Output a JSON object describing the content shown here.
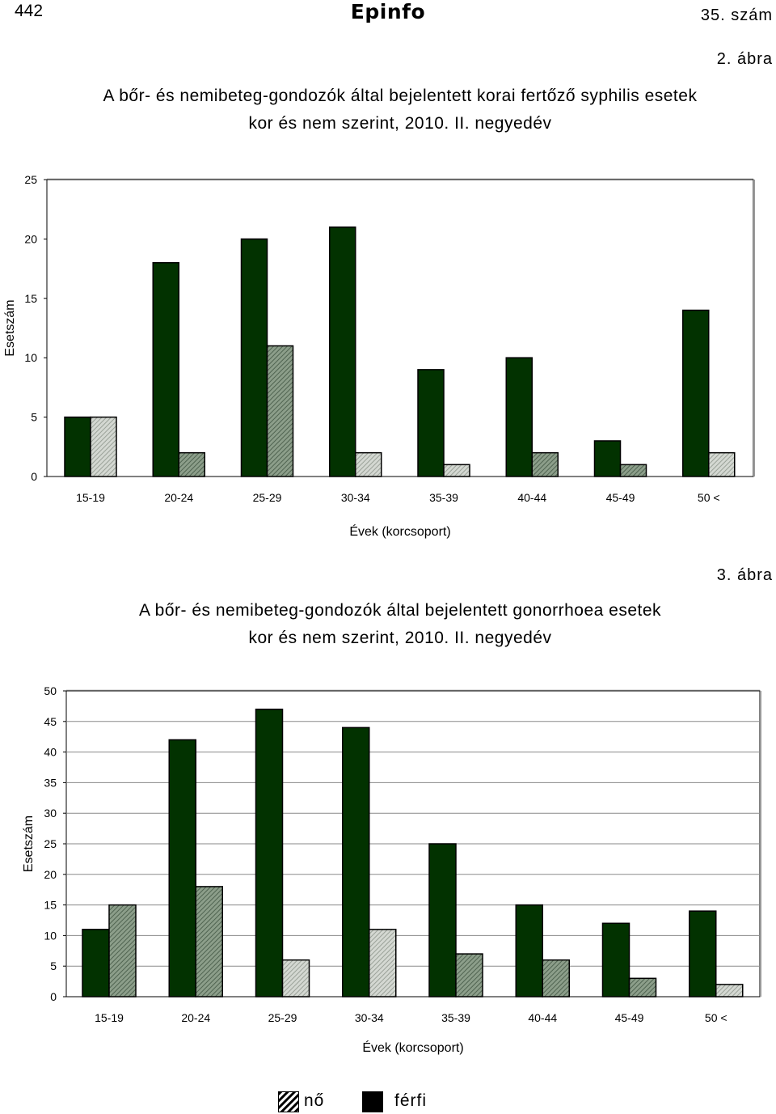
{
  "header": {
    "page_number": "442",
    "logo": "Epinfo",
    "issue": "35. szám"
  },
  "figure2": {
    "label": "2. ábra",
    "title_line1": "A bőr- és nemibeteg-gondozók által bejelentett korai fertőző syphilis esetek",
    "title_line2": "kor és nem szerint, 2010. II. negyedév"
  },
  "figure3": {
    "label": "3. ábra",
    "title_line1": "A bőr- és nemibeteg-gondozók által bejelentett gonorrhoea esetek",
    "title_line2": "kor és nem szerint, 2010. II. negyedév"
  },
  "legend": {
    "female": "nő",
    "male": "férfi"
  },
  "colors": {
    "male": "#023200",
    "female_light": "#d4d8d2",
    "female_mid": "#8c9e8a"
  },
  "chart_data": [
    {
      "type": "bar",
      "title": "A bőr- és nemibeteg-gondozók által bejelentett korai fertőző syphilis esetek kor és nem szerint, 2010. II. negyedév",
      "xlabel": "Évek (korcsoport)",
      "ylabel": "Esetszám",
      "categories": [
        "15-19",
        "20-24",
        "25-29",
        "30-34",
        "35-39",
        "40-44",
        "45-49",
        "50 <"
      ],
      "series": [
        {
          "name": "férfi",
          "values": [
            5,
            18,
            20,
            21,
            9,
            10,
            3,
            14
          ]
        },
        {
          "name": "nő",
          "values": [
            5,
            2,
            11,
            2,
            1,
            2,
            1,
            2
          ]
        }
      ],
      "female_shades": [
        "light",
        "mid",
        "mid",
        "light",
        "light",
        "mid",
        "mid",
        "light"
      ],
      "ylim": [
        0,
        25
      ],
      "yticks": [
        0,
        5,
        10,
        15,
        20,
        25
      ],
      "grid": false,
      "legend": "bottom"
    },
    {
      "type": "bar",
      "title": "A bőr- és nemibeteg-gondozók által bejelentett gonorrhoea esetek kor és nem szerint, 2010. II. negyedév",
      "xlabel": "Évek (korcsoport)",
      "ylabel": "Esetszám",
      "categories": [
        "15-19",
        "20-24",
        "25-29",
        "30-34",
        "35-39",
        "40-44",
        "45-49",
        "50 <"
      ],
      "series": [
        {
          "name": "férfi",
          "values": [
            11,
            42,
            47,
            44,
            25,
            15,
            12,
            14
          ]
        },
        {
          "name": "nő",
          "values": [
            15,
            18,
            6,
            11,
            7,
            6,
            3,
            2
          ]
        }
      ],
      "female_shades": [
        "mid",
        "mid",
        "light",
        "light",
        "mid",
        "mid",
        "mid",
        "light"
      ],
      "ylim": [
        0,
        50
      ],
      "yticks": [
        0,
        5,
        10,
        15,
        20,
        25,
        30,
        35,
        40,
        45,
        50
      ],
      "grid": true,
      "legend": "bottom"
    }
  ]
}
